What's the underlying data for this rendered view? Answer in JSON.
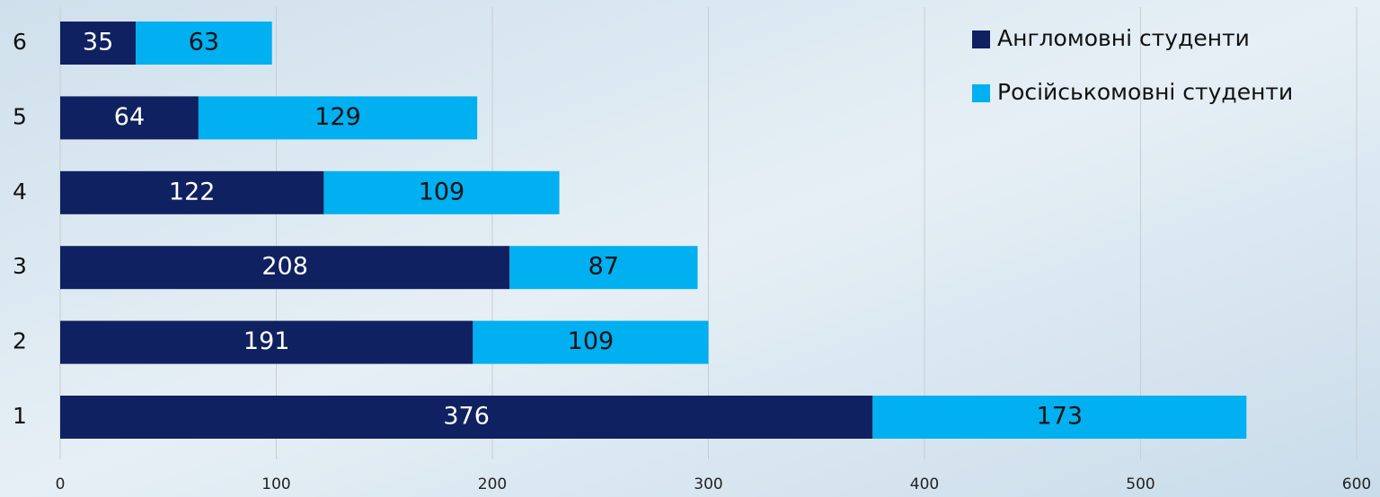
{
  "chart_data": {
    "type": "bar",
    "orientation": "horizontal",
    "stacked": true,
    "categories": [
      "1",
      "2",
      "3",
      "4",
      "5",
      "6"
    ],
    "series": [
      {
        "name": "Англомовні студенти",
        "color": "#0f2160",
        "values": [
          376,
          191,
          208,
          122,
          64,
          35
        ]
      },
      {
        "name": "Російськомовні студенти",
        "color": "#00b0f0",
        "values": [
          173,
          109,
          87,
          109,
          129,
          63
        ]
      }
    ],
    "xlim": [
      0,
      600
    ],
    "xticks": [
      0,
      100,
      200,
      300,
      400,
      500,
      600
    ],
    "grid": true,
    "legend": "top-right"
  }
}
